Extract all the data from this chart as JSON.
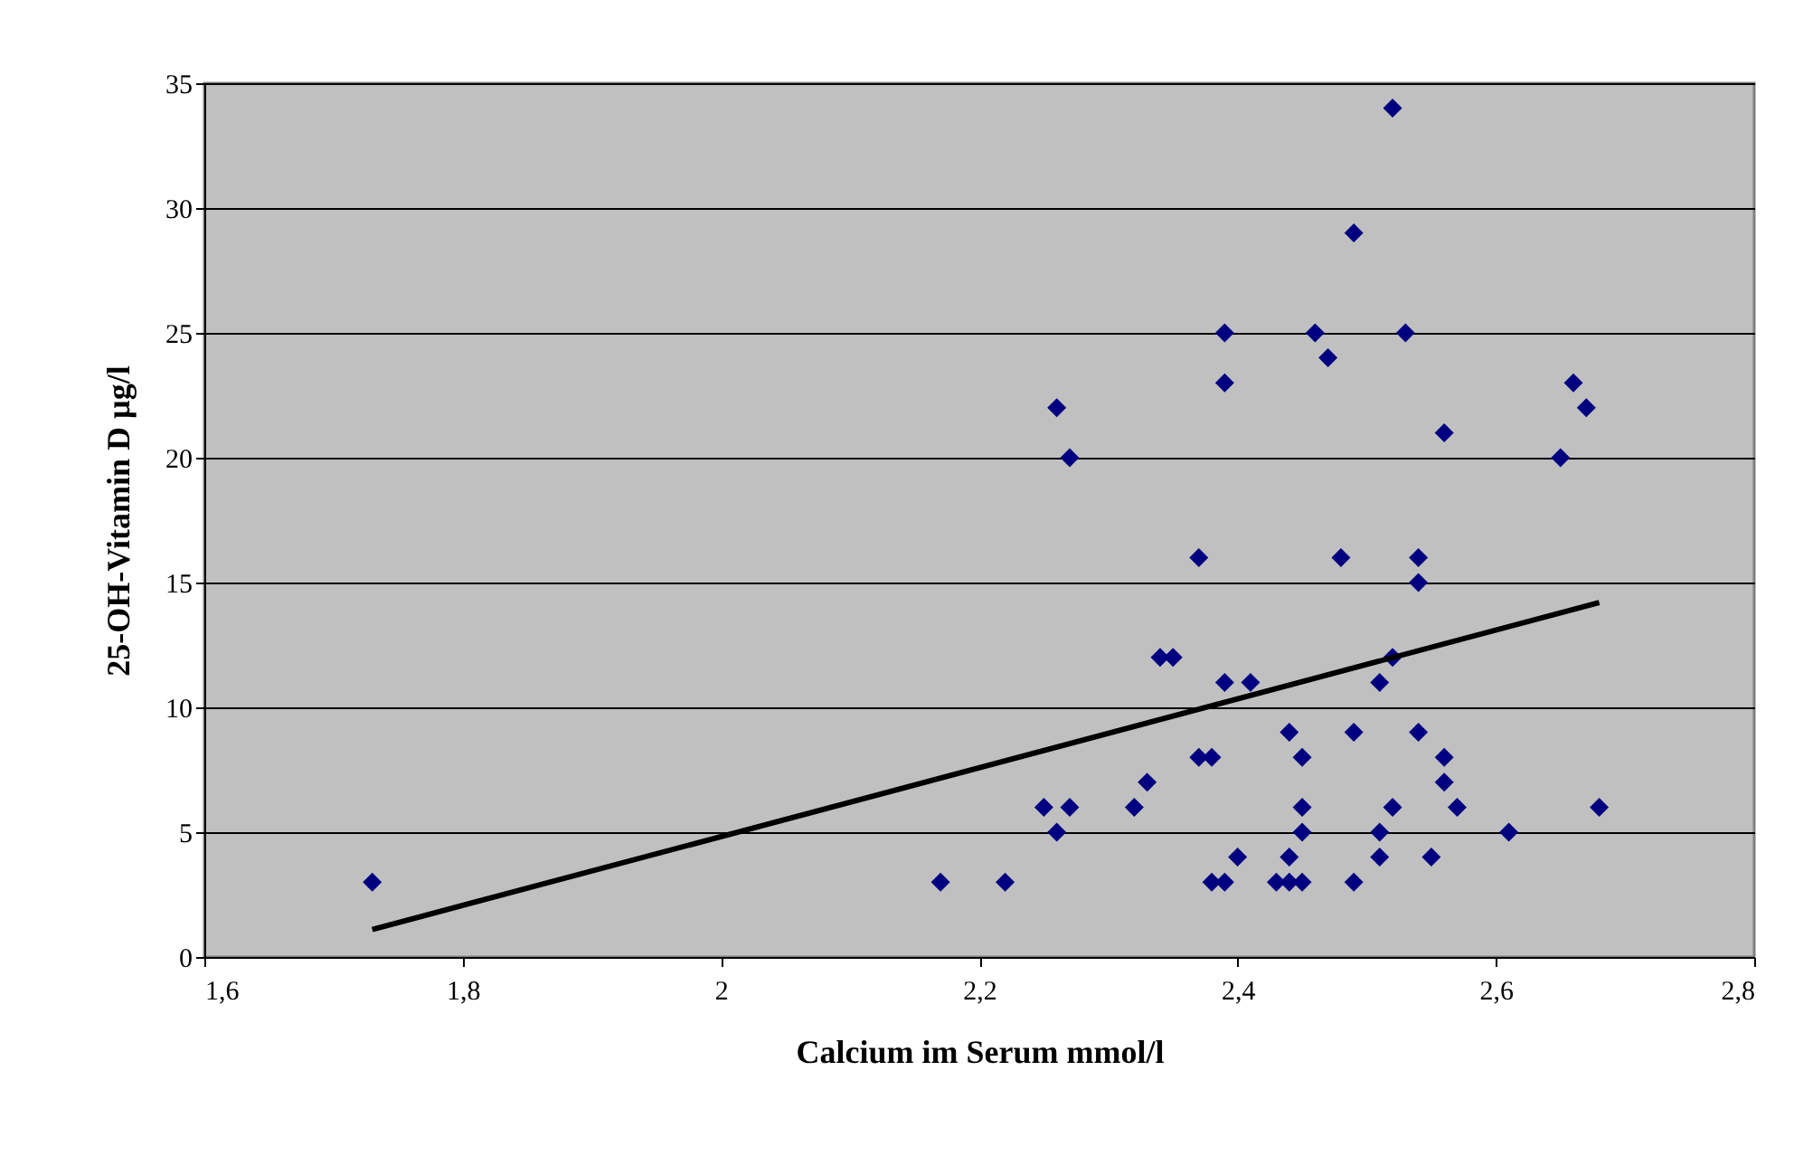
{
  "chart_data": {
    "type": "scatter",
    "xlabel": "Calcium im Serum mmol/l",
    "ylabel": "25-OH-Vitamin D µg/l",
    "xlim": [
      1.6,
      2.8
    ],
    "xticks": [
      {
        "value": 1.6,
        "label": "1,6"
      },
      {
        "value": 1.8,
        "label": "1,8"
      },
      {
        "value": 2,
        "label": "2"
      },
      {
        "value": 2.2,
        "label": "2,2"
      },
      {
        "value": 2.4,
        "label": "2,4"
      },
      {
        "value": 2.6,
        "label": "2,6"
      },
      {
        "value": 2.8,
        "label": "2,8"
      }
    ],
    "ylim": [
      0,
      35
    ],
    "yticks": [
      0,
      5,
      10,
      15,
      20,
      25,
      30,
      35
    ],
    "grid": "y",
    "series": [
      {
        "marker": "diamond",
        "color": "#000080",
        "x": [
          1.73,
          2.17,
          2.22,
          2.25,
          2.26,
          2.26,
          2.27,
          2.27,
          2.32,
          2.33,
          2.34,
          2.35,
          2.37,
          2.37,
          2.38,
          2.38,
          2.39,
          2.39,
          2.39,
          2.39,
          2.4,
          2.41,
          2.43,
          2.44,
          2.44,
          2.44,
          2.45,
          2.45,
          2.45,
          2.45,
          2.46,
          2.47,
          2.48,
          2.49,
          2.49,
          2.49,
          2.51,
          2.51,
          2.51,
          2.52,
          2.52,
          2.52,
          2.53,
          2.54,
          2.54,
          2.54,
          2.55,
          2.56,
          2.56,
          2.56,
          2.57,
          2.61,
          2.65,
          2.66,
          2.67,
          2.68
        ],
        "values": [
          3,
          3,
          3,
          6,
          5,
          22,
          6,
          20,
          6,
          7,
          12,
          12,
          16,
          8,
          8,
          3,
          3,
          25,
          23,
          11,
          4,
          11,
          3,
          3,
          4,
          9,
          8,
          6,
          5,
          3,
          25,
          24,
          16,
          29,
          9,
          3,
          11,
          5,
          4,
          34,
          12,
          6,
          25,
          16,
          15,
          9,
          4,
          21,
          8,
          7,
          6,
          5,
          20,
          23,
          22,
          6
        ]
      },
      {
        "type": "line",
        "color": "#000000",
        "x": [
          1.73,
          2.68
        ],
        "values": [
          1.1,
          14.2
        ]
      }
    ]
  }
}
